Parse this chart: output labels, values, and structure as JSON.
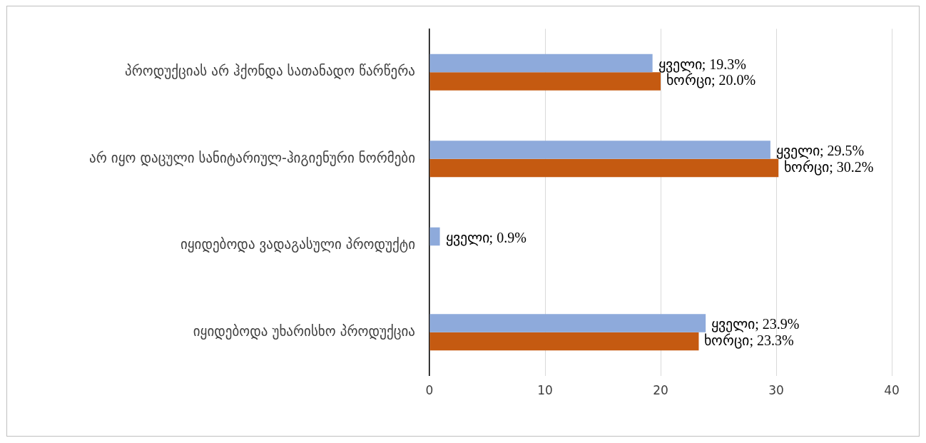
{
  "chart_data": {
    "type": "bar",
    "orientation": "horizontal",
    "categories": [
      "პროდუქციას არ ჰქონდა სათანადო წარწერა",
      "არ იყო დაცული სანიტარიულ-ჰიგიენური ნორმები",
      "იყიდებოდა ვადაგასული პროდუქტი",
      "იყიდებოდა უხარისხო პროდუქცია"
    ],
    "series": [
      {
        "color": "#8eaadb",
        "values": [
          19.3,
          29.5,
          0.9,
          23.9
        ],
        "value_labels": [
          "ყველი; 19.3%",
          "ყველი; 29.5%",
          "ყველი; 0.9%",
          "ყველი; 23.9%"
        ]
      },
      {
        "color": "#c55a11",
        "values": [
          20.0,
          30.2,
          null,
          23.3
        ],
        "value_labels": [
          "ხორცი; 20.0%",
          "ხორცი; 30.2%",
          null,
          "ხორცი; 23.3%"
        ]
      }
    ],
    "xlim": [
      0,
      40
    ],
    "xticks": [
      0,
      10,
      20,
      30,
      40
    ],
    "grid": "x",
    "legend": false
  }
}
